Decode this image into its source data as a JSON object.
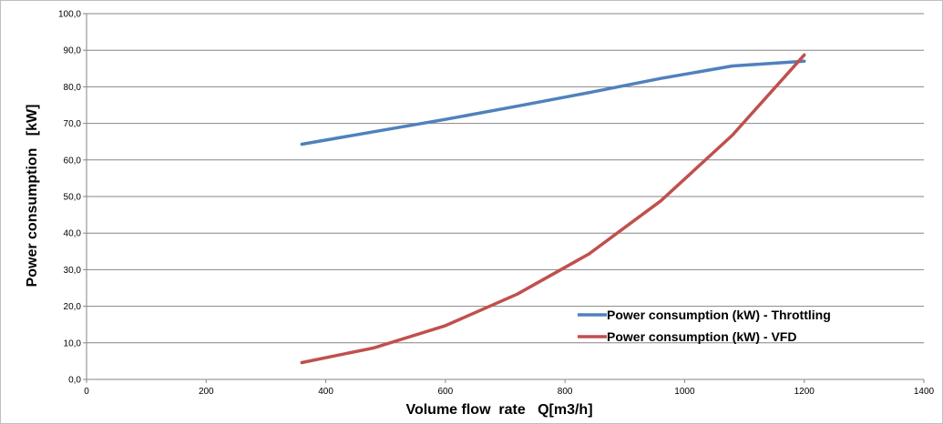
{
  "chart_data": {
    "type": "line",
    "xlabel": "Volume flow  rate   Q[m3/h]",
    "ylabel": "Power consumption   [kW]",
    "xlim": [
      0,
      1400
    ],
    "ylim": [
      0,
      100
    ],
    "x_ticks": [
      "0",
      "200",
      "400",
      "600",
      "800",
      "1000",
      "1200",
      "1400"
    ],
    "y_ticks": [
      "0,0",
      "10,0",
      "20,0",
      "30,0",
      "40,0",
      "50,0",
      "60,0",
      "70,0",
      "80,0",
      "90,0",
      "100,0"
    ],
    "grid": "horizontal",
    "legend_position": "bottom-right",
    "series": [
      {
        "name": "Power consumption (kW) - Throttling",
        "color": "#4f81bd",
        "x": [
          360,
          480,
          600,
          720,
          840,
          960,
          1080,
          1200
        ],
        "y": [
          64.3,
          67.7,
          71.1,
          74.7,
          78.4,
          82.3,
          85.7,
          87.0
        ]
      },
      {
        "name": "Power consumption (kW) - VFD",
        "color": "#c0504d",
        "x": [
          360,
          480,
          600,
          720,
          840,
          960,
          1080,
          1200
        ],
        "y": [
          4.6,
          8.6,
          14.7,
          23.3,
          34.3,
          48.8,
          66.8,
          88.7
        ]
      }
    ]
  }
}
